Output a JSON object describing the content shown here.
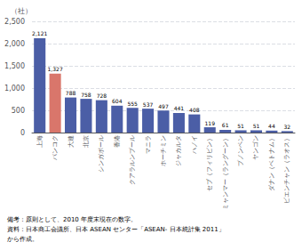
{
  "chart_data": {
    "type": "bar",
    "ylabel": "（社）",
    "categories": [
      "上海",
      "バンコク",
      "大連",
      "北京",
      "シンガポール",
      "香港",
      "クアラルンプール",
      "マニラ",
      "ホーチミン",
      "ジャカルタ",
      "ハノイ",
      "セブ（フィリピン）",
      "ミャンマー（ラングーン）",
      "プノンペン",
      "ヤンゴン",
      "ダナン（ベトナム）",
      "ビエンチャン（ラオス）"
    ],
    "values": [
      2121,
      1327,
      788,
      758,
      728,
      604,
      555,
      537,
      497,
      441,
      408,
      119,
      61,
      51,
      51,
      44,
      32
    ],
    "value_labels": [
      "2,121",
      "1,327",
      "788",
      "758",
      "728",
      "604",
      "555",
      "537",
      "497",
      "441",
      "408",
      "119",
      "61",
      "51",
      "51",
      "44",
      "32"
    ],
    "colors": [
      "#4b5ea6",
      "#d9766b",
      "#4b5ea6",
      "#4b5ea6",
      "#4b5ea6",
      "#4b5ea6",
      "#4b5ea6",
      "#4b5ea6",
      "#4b5ea6",
      "#4b5ea6",
      "#4b5ea6",
      "#4b5ea6",
      "#4b5ea6",
      "#4b5ea6",
      "#4b5ea6",
      "#4b5ea6",
      "#4b5ea6"
    ],
    "ylim": [
      0,
      2500
    ],
    "yticks": [
      0,
      500,
      {
        "value": 1000,
        "label": "1,000"
      },
      {
        "value": 1500,
        "label": "1,500"
      },
      {
        "value": 2000,
        "label": "2,000"
      },
      {
        "value": 2500,
        "label": "2,500"
      }
    ],
    "grid": true,
    "data_labels": true,
    "annotations": [
      "備考：原則として、2010 年度末現在の数字。",
      "資料：日本商工会議所、日本 ASEAN センター「ASEAN- 日本統計集 2011」",
      "から作成。"
    ]
  }
}
